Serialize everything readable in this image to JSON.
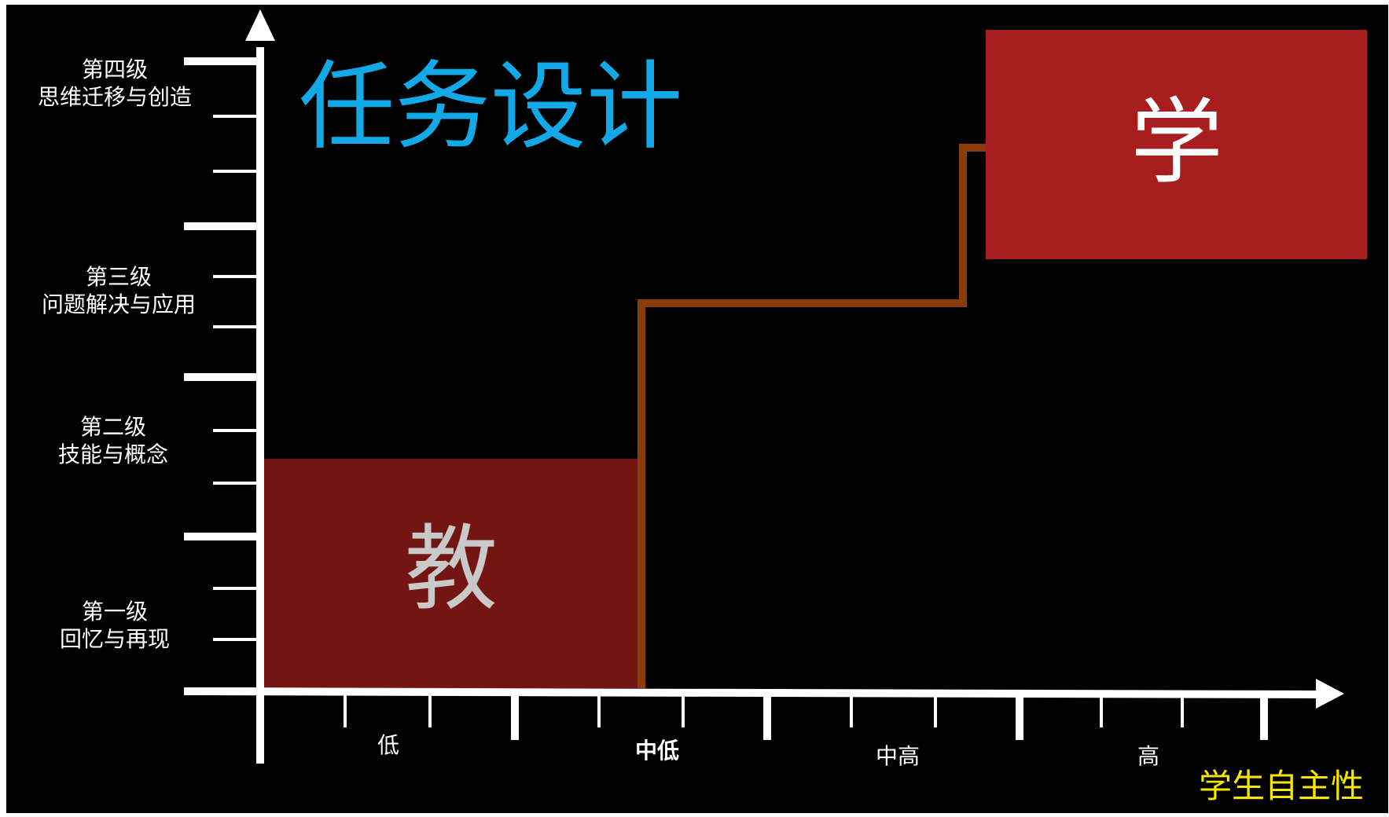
{
  "title": "任务设计",
  "axis_x_label": "学生自主性",
  "levels": [
    {
      "name": "第一级",
      "desc": "回忆与再现"
    },
    {
      "name": "第二级",
      "desc": "技能与概念"
    },
    {
      "name": "第三级",
      "desc": "问题解决与应用"
    },
    {
      "name": "第四级",
      "desc": "思维迁移与创造"
    }
  ],
  "x_categories": [
    "低",
    "中低",
    "中高",
    "高"
  ],
  "teach_label": "教",
  "learn_label": "学",
  "colors": {
    "background": "#000000",
    "axis": "#ffffff",
    "title": "#12a9e6",
    "axis_x_label": "#f5e600",
    "teach_box": "#731513",
    "teach_text": "#c9c9c9",
    "learn_box": "#a81d1d",
    "learn_text": "#ffffff",
    "step_line": "#8a3d08"
  }
}
